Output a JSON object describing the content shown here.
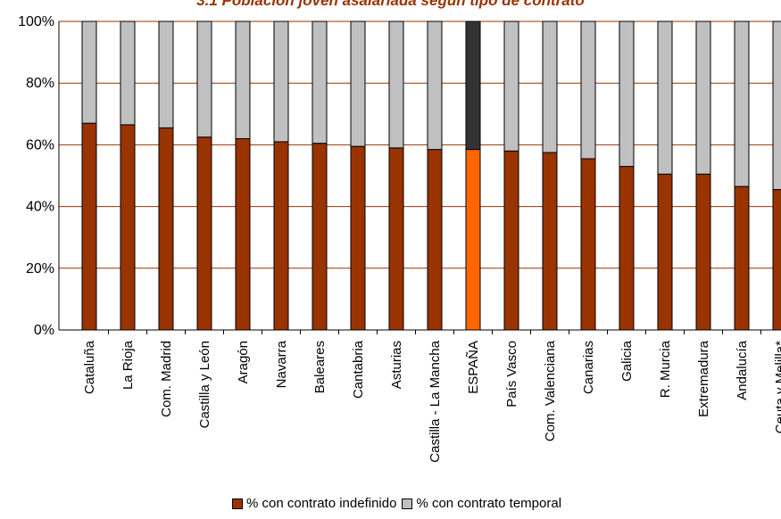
{
  "chart_data": {
    "type": "bar",
    "stacked": true,
    "percent": true,
    "title": "3.1 Población joven asalariada según tipo de contrato",
    "ylim": [
      0,
      100
    ],
    "yticks": [
      "0%",
      "20%",
      "40%",
      "60%",
      "80%",
      "100%"
    ],
    "categories": [
      "Cataluña",
      "La Rioja",
      "Com. Madrid",
      "Castilla y León",
      "Aragón",
      "Navarra",
      "Baleares",
      "Cantabria",
      "Asturias",
      "Castilla - La Mancha",
      "ESPAÑA",
      "País Vasco",
      "Com. Valenciana",
      "Canarias",
      "Galicia",
      "R. Murcia",
      "Extremadura",
      "Andalucía",
      "Ceuta y Melilla*"
    ],
    "highlight_category": "ESPAÑA",
    "series": [
      {
        "name": "% con contrato indefinido",
        "color": "#993300",
        "highlight_color": "#ff6600",
        "values": [
          67,
          66.5,
          65.5,
          62.5,
          62,
          61,
          60.5,
          59.5,
          59,
          58.5,
          58.5,
          58,
          57.5,
          55.5,
          53,
          50.5,
          50.5,
          46.5,
          45.5
        ]
      },
      {
        "name": "% con contrato temporal",
        "color": "#c0c0c0",
        "highlight_color": "#333333",
        "values": [
          33,
          33.5,
          34.5,
          37.5,
          38,
          39,
          39.5,
          40.5,
          41,
          41.5,
          41.5,
          42,
          42.5,
          44.5,
          47,
          49.5,
          49.5,
          53.5,
          54.5
        ]
      }
    ],
    "grid": true,
    "legend": "bottom"
  }
}
